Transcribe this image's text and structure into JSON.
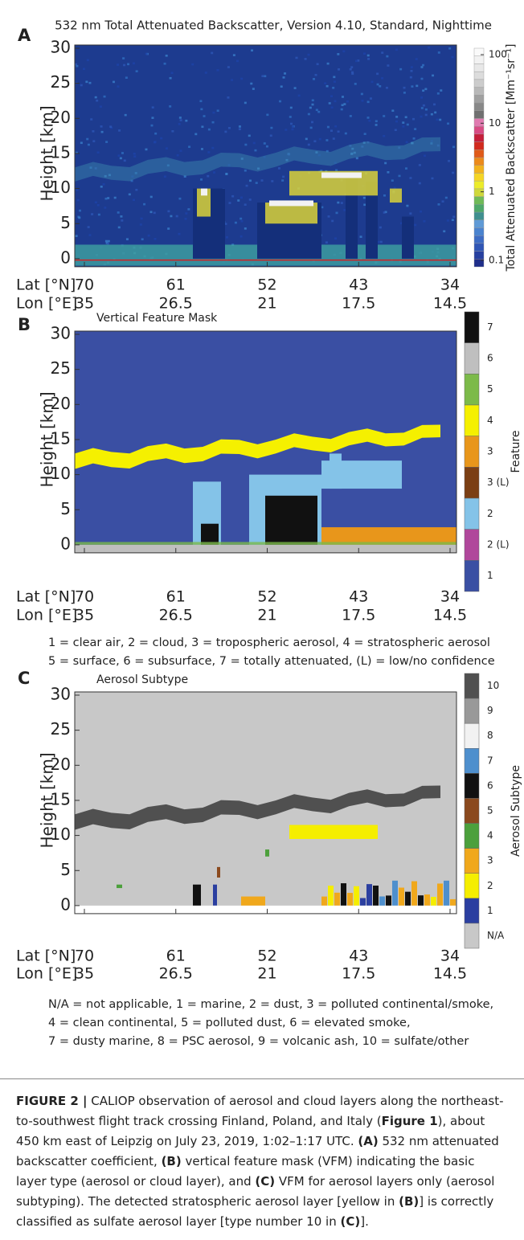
{
  "panels": [
    {
      "letter": "A",
      "title": "532 nm Total Attenuated Backscatter, Version 4.10, Standard, Nighttime",
      "y_axis_label": "Height [km]",
      "yticks": [
        0,
        5,
        10,
        15,
        20,
        25,
        30
      ],
      "lat_label": "Lat [°N]",
      "lon_label": "Lon [°E]",
      "lat_ticks": [
        70,
        61,
        52,
        43,
        34
      ],
      "lon_ticks": [
        35,
        26.5,
        21,
        17.5,
        14.5
      ],
      "colorbar": {
        "label": "Total Attenuated Backscatter [Mm⁻¹sr⁻¹]",
        "log_scale": true,
        "ticks": [
          100,
          10,
          1,
          0.1
        ]
      }
    },
    {
      "letter": "B",
      "title": "Vertical Feature Mask",
      "y_axis_label": "Height [km]",
      "yticks": [
        0,
        5,
        10,
        15,
        20,
        25,
        30
      ],
      "lat_label": "Lat [°N]",
      "lon_label": "Lon [°E]",
      "lat_ticks": [
        70,
        61,
        52,
        43,
        34
      ],
      "lon_ticks": [
        35,
        26.5,
        21,
        17.5,
        14.5
      ],
      "colorbar": {
        "label": "Feature",
        "entries": [
          {
            "label": "7",
            "color": "#111111"
          },
          {
            "label": "6",
            "color": "#bfbfbf"
          },
          {
            "label": "5",
            "color": "#7cba4a"
          },
          {
            "label": "4",
            "color": "#f5f000"
          },
          {
            "label": "3",
            "color": "#e8961b"
          },
          {
            "label": "3 (L)",
            "color": "#7b3f14"
          },
          {
            "label": "2",
            "color": "#84c3e8"
          },
          {
            "label": "2 (L)",
            "color": "#b0479b"
          },
          {
            "label": "1",
            "color": "#3a4fa3"
          }
        ]
      },
      "legend": [
        "1 = clear air, 2 = cloud, 3 = tropospheric aerosol, 4 = stratospheric aerosol",
        "5 = surface, 6 = subsurface, 7 = totally attenuated, (L) = low/no confidence"
      ]
    },
    {
      "letter": "C",
      "title": "Aerosol Subtype",
      "y_axis_label": "Height [km]",
      "yticks": [
        0,
        5,
        10,
        15,
        20,
        25,
        30
      ],
      "lat_label": "Lat [°N]",
      "lon_label": "Lon [°E]",
      "lat_ticks": [
        70,
        61,
        52,
        43,
        34
      ],
      "lon_ticks": [
        35,
        26.5,
        21,
        17.5,
        14.5
      ],
      "colorbar": {
        "label": "Aerosol Subtype",
        "entries": [
          {
            "label": "10",
            "color": "#505050"
          },
          {
            "label": "9",
            "color": "#999999"
          },
          {
            "label": "8",
            "color": "#f2f2f2"
          },
          {
            "label": "7",
            "color": "#4e8fcd"
          },
          {
            "label": "6",
            "color": "#111111"
          },
          {
            "label": "5",
            "color": "#8b4a1e"
          },
          {
            "label": "4",
            "color": "#4ca03c"
          },
          {
            "label": "3",
            "color": "#f0a81c"
          },
          {
            "label": "2",
            "color": "#f5ee00"
          },
          {
            "label": "1",
            "color": "#2b3fa0"
          },
          {
            "label": "N/A",
            "color": "#c8c8c8"
          }
        ]
      },
      "legend": [
        "N/A = not applicable, 1 = marine, 2 = dust, 3 = polluted continental/smoke,",
        "4 = clean continental, 5 = polluted dust, 6 = elevated smoke,",
        "7 = dusty marine, 8 = PSC aerosol, 9 = volcanic ash, 10 = sulfate/other"
      ]
    }
  ],
  "caption": [
    {
      "text": "FIGURE 2 |",
      "bold": true
    },
    {
      "text": " CALIOP observation of aerosol and cloud layers along the northeast-to-southwest flight track crossing Finland, Poland, and Italy (",
      "bold": false
    },
    {
      "text": "Figure 1",
      "bold": true
    },
    {
      "text": "), about 450 km east of Leipzig on July 23, 2019, 1:02–1:17 UTC. ",
      "bold": false
    },
    {
      "text": "(A)",
      "bold": true
    },
    {
      "text": " 532 nm attenuated backscatter coefficient, ",
      "bold": false
    },
    {
      "text": "(B)",
      "bold": true
    },
    {
      "text": " vertical feature mask (VFM) indicating the basic layer type (aerosol or cloud layer), and ",
      "bold": false
    },
    {
      "text": "(C)",
      "bold": true
    },
    {
      "text": " VFM for aerosol layers only (aerosol subtyping). The detected stratospheric aerosol layer [yellow in ",
      "bold": false
    },
    {
      "text": "(B)",
      "bold": true
    },
    {
      "text": "] is correctly classified as sulfate aerosol layer [type number 10 in ",
      "bold": false
    },
    {
      "text": "(C)",
      "bold": true
    },
    {
      "text": "].",
      "bold": false
    }
  ]
}
